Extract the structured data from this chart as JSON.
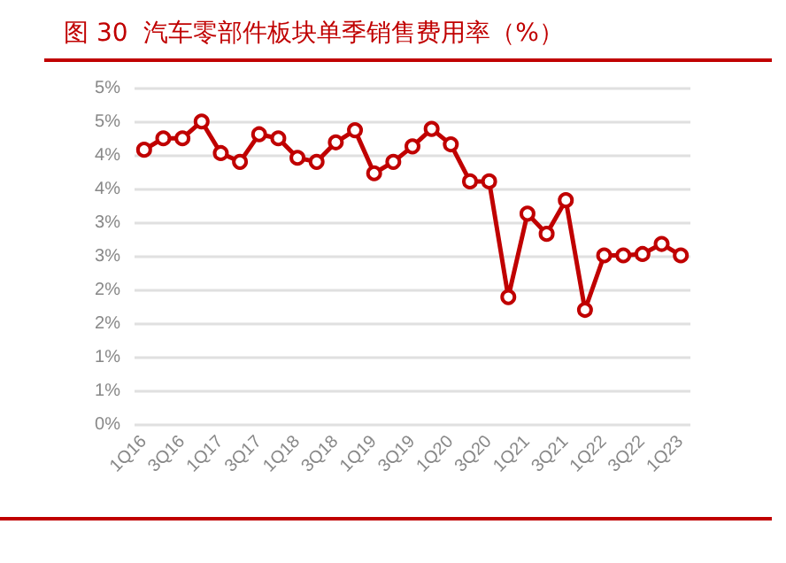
{
  "chart_data": {
    "type": "line",
    "title": "图 30  汽车零部件板块单季销售费用率（%）",
    "categories": [
      "1Q16",
      null,
      "3Q16",
      null,
      "1Q17",
      null,
      "3Q17",
      null,
      "1Q18",
      null,
      "3Q18",
      null,
      "1Q19",
      null,
      "3Q19",
      null,
      "1Q20",
      null,
      "3Q20",
      null,
      "1Q21",
      null,
      "3Q21",
      null,
      "1Q22",
      null,
      "3Q22",
      null,
      "1Q23"
    ],
    "series": [
      {
        "color": "#c00000",
        "values": [
          4.09,
          4.26,
          4.26,
          4.51,
          4.04,
          3.91,
          4.32,
          4.26,
          3.97,
          3.91,
          4.2,
          4.38,
          3.74,
          3.91,
          4.14,
          4.4,
          4.17,
          3.62,
          3.62,
          1.9,
          3.14,
          2.84,
          3.34,
          1.71,
          2.52,
          2.52,
          2.54,
          2.69,
          2.52
        ]
      }
    ],
    "ylim": [
      0,
      5
    ],
    "yticks": [
      {
        "value": 0,
        "label": "0%"
      },
      {
        "value": 0.5,
        "label": "1%"
      },
      {
        "value": 1,
        "label": "1%"
      },
      {
        "value": 1.5,
        "label": "2%"
      },
      {
        "value": 2,
        "label": "2%"
      },
      {
        "value": 2.5,
        "label": "3%"
      },
      {
        "value": 3,
        "label": "3%"
      },
      {
        "value": 3.5,
        "label": "4%"
      },
      {
        "value": 4,
        "label": "4%"
      },
      {
        "value": 4.5,
        "label": "5%"
      },
      {
        "value": 5,
        "label": "5%"
      }
    ],
    "grid": "y",
    "marker": "circle",
    "line_style": "solid"
  }
}
